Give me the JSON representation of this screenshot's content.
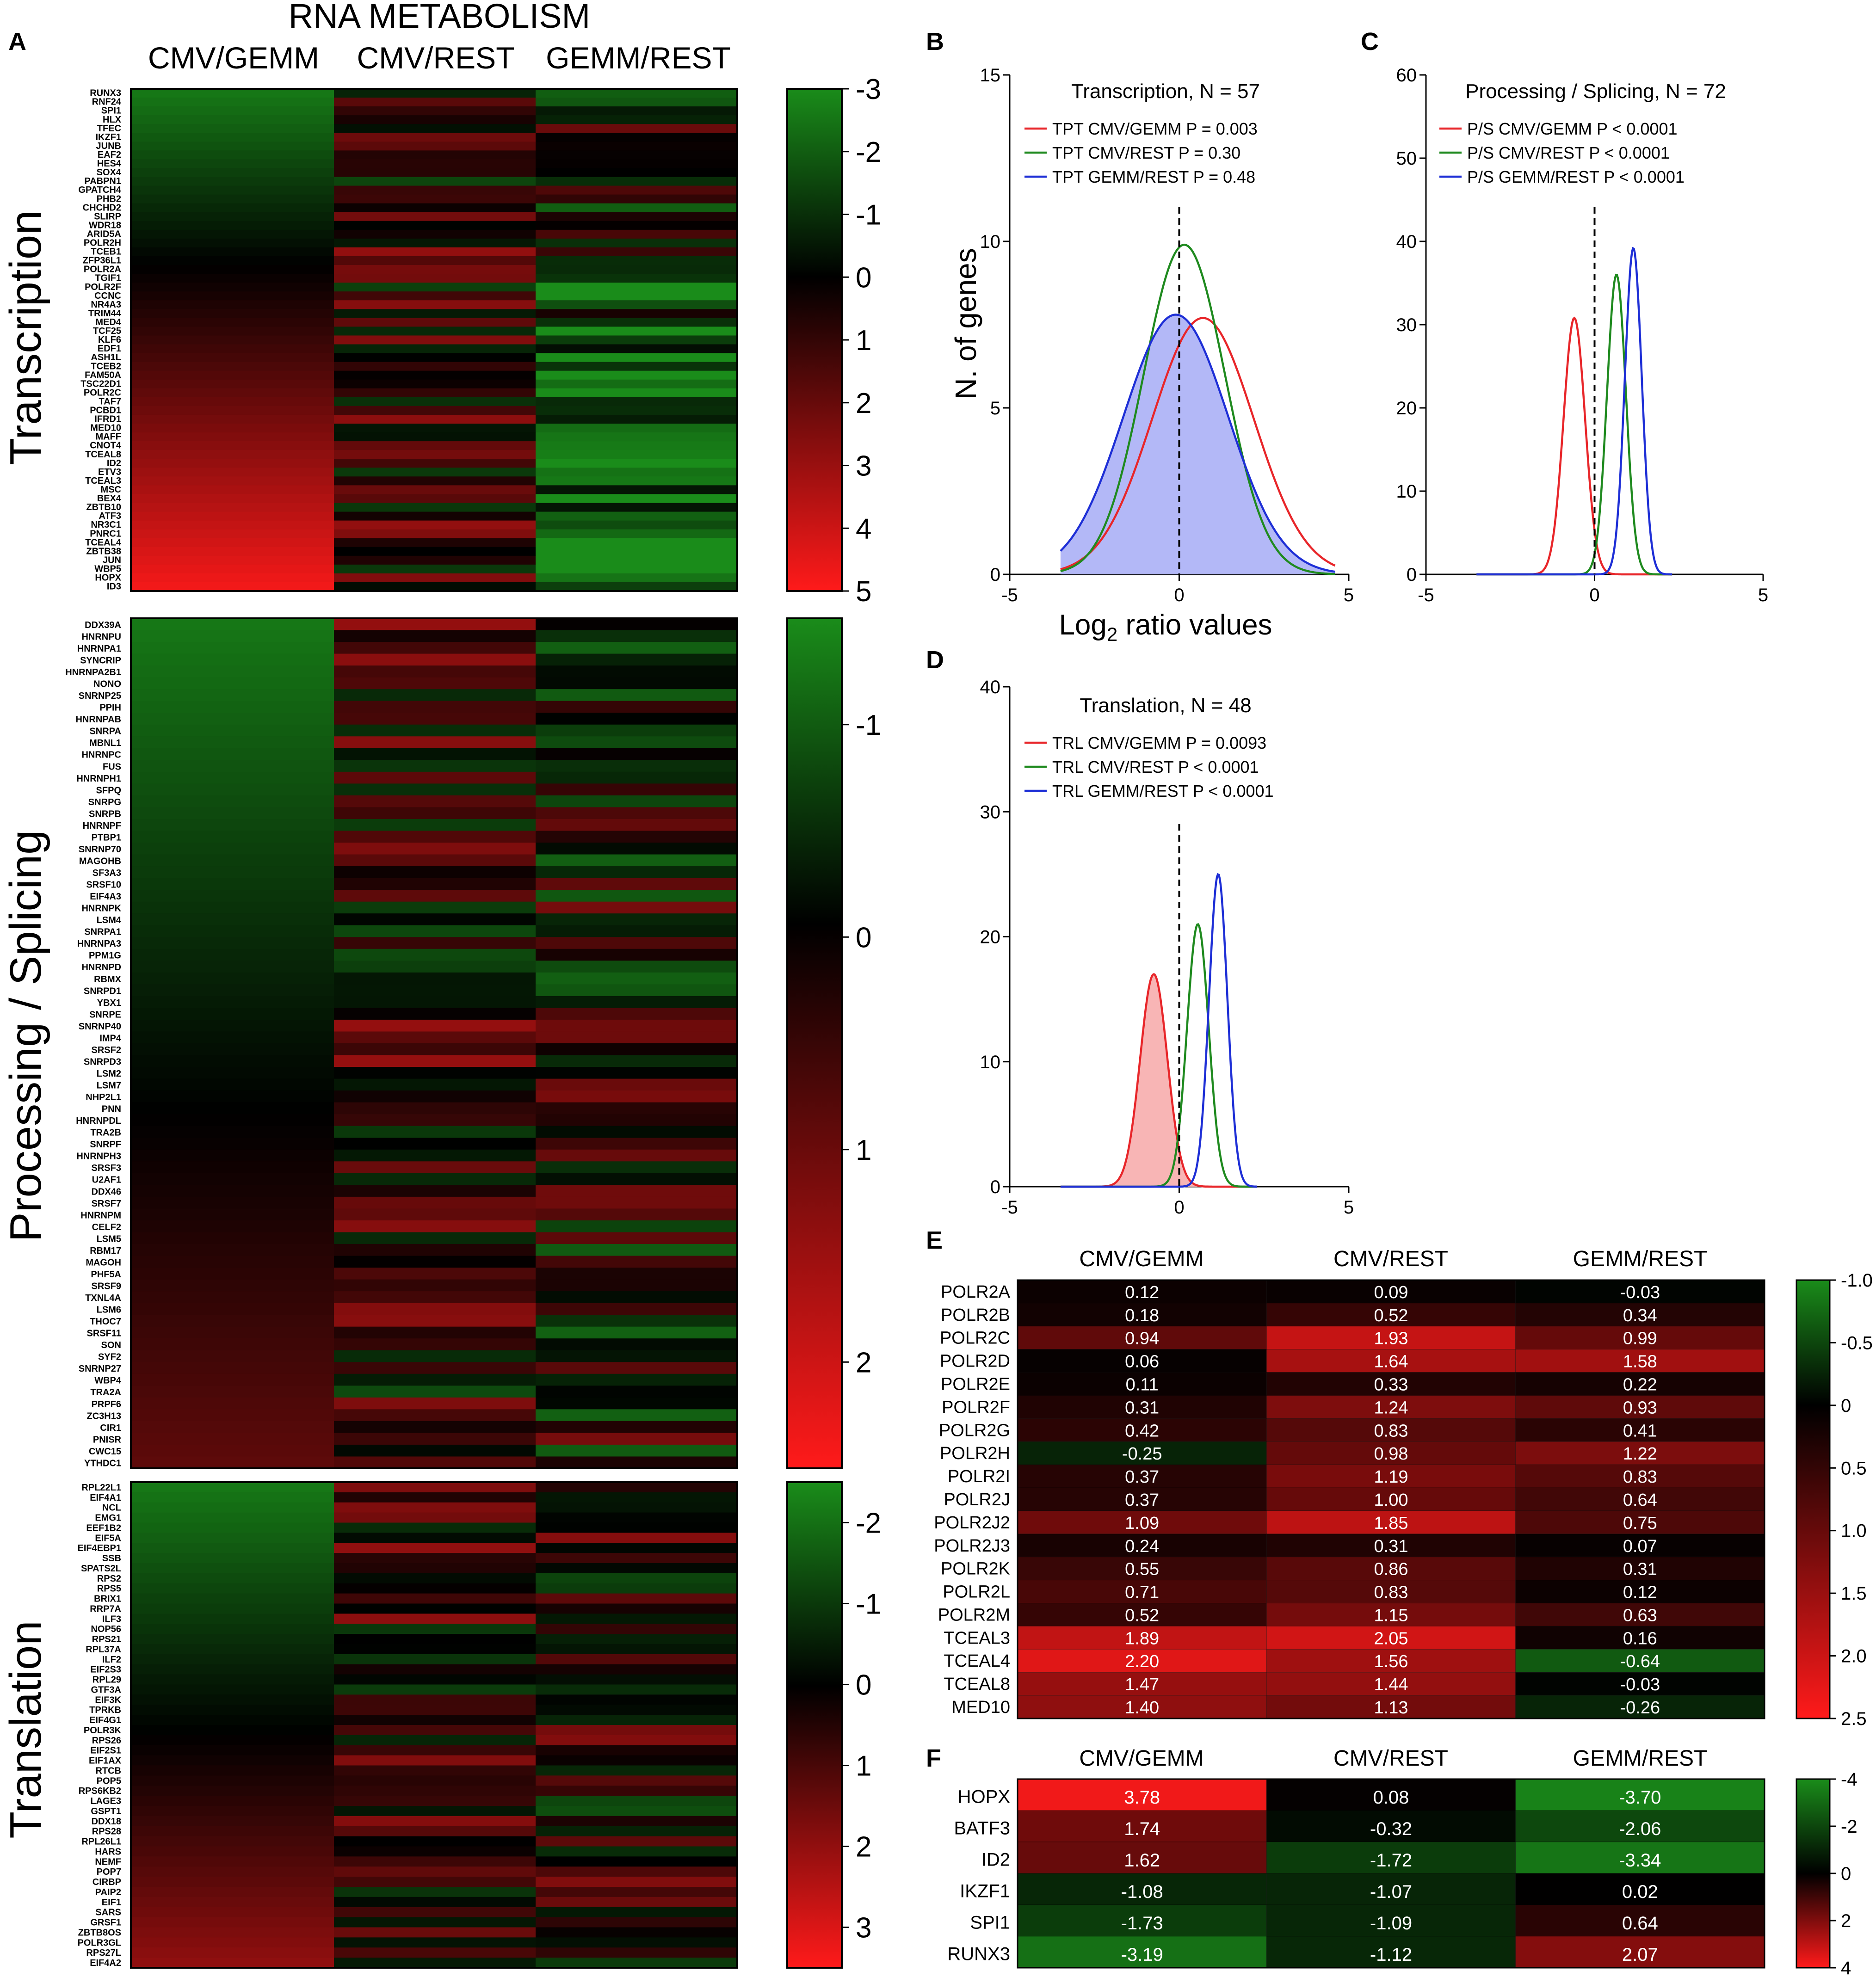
{
  "panel_letters": {
    "A": "A",
    "B": "B",
    "C": "C",
    "D": "D",
    "E": "E",
    "F": "F"
  },
  "colors": {
    "green": "#1a8c1a",
    "black": "#000000",
    "red": "#ff1a1a",
    "gauss_red": "#e8262a",
    "gauss_green": "#1f8a1f",
    "gauss_blue": "#1e2fd6",
    "fill_blue": "#b3b8f7",
    "fill_red": "#f8b5b5"
  },
  "chart_data": [
    {
      "id": "A",
      "type": "heatmap",
      "title": "RNA METABOLISM",
      "columns": [
        "CMV/GEMM",
        "CMV/REST",
        "GEMM/REST"
      ],
      "sections": [
        {
          "label": "Transcription",
          "scale": {
            "ticks": [
              "-3",
              "-2",
              "-1",
              "0",
              "1",
              "2",
              "3",
              "4",
              "5"
            ],
            "min": -3,
            "max": 5
          },
          "genes": [
            "RUNX3",
            "RNF24",
            "SPI1",
            "HLX",
            "TFEC",
            "IKZF1",
            "JUNB",
            "EAF2",
            "HES4",
            "SOX4",
            "PABPN1",
            "GPATCH4",
            "PHB2",
            "CHCHD2",
            "SLIRP",
            "WDR18",
            "ARID5A",
            "POLR2H",
            "TCEB1",
            "ZFP36L1",
            "POLR2A",
            "TGIF1",
            "POLR2F",
            "CCNC",
            "NR4A3",
            "TRIM44",
            "MED4",
            "TCF25",
            "KLF6",
            "EDF1",
            "ASH1L",
            "TCEB2",
            "FAM50A",
            "TSC22D1",
            "POLR2C",
            "TAF7",
            "PCBD1",
            "IFRD1",
            "MED10",
            "MAFF",
            "CNOT4",
            "TCEAL8",
            "ID2",
            "ETV3",
            "TCEAL3",
            "MSC",
            "BEX4",
            "ZBTB10",
            "ATF3",
            "NR3C1",
            "PNRC1",
            "TCEAL4",
            "ZBTB38",
            "JUN",
            "WBP5",
            "HOPX",
            "ID3"
          ]
        },
        {
          "label": "Processing / Splicing",
          "scale": {
            "ticks": [
              "-1",
              "0",
              "1",
              "2"
            ],
            "min": -1.5,
            "max": 2.5
          },
          "genes": [
            "DDX39A",
            "HNRNPU",
            "HNRNPA1",
            "SYNCRIP",
            "HNRNPA2B1",
            "NONO",
            "SNRNP25",
            "PPIH",
            "HNRNPAB",
            "SNRPA",
            "MBNL1",
            "HNRNPC",
            "FUS",
            "HNRNPH1",
            "SFPQ",
            "SNRPG",
            "SNRPB",
            "HNRNPF",
            "PTBP1",
            "SNRNP70",
            "MAGOHB",
            "SF3A3",
            "SRSF10",
            "EIF4A3",
            "HNRNPK",
            "LSM4",
            "SNRPA1",
            "HNRNPA3",
            "PPM1G",
            "HNRNPD",
            "RBMX",
            "SNRPD1",
            "YBX1",
            "SNRPE",
            "SNRNP40",
            "IMP4",
            "SRSF2",
            "SNRPD3",
            "LSM2",
            "LSM7",
            "NHP2L1",
            "PNN",
            "HNRNPDL",
            "TRA2B",
            "SNRPF",
            "HNRNPH3",
            "SRSF3",
            "U2AF1",
            "DDX46",
            "SRSF7",
            "HNRNPM",
            "CELF2",
            "LSM5",
            "RBM17",
            "MAGOH",
            "PHF5A",
            "SRSF9",
            "TXNL4A",
            "LSM6",
            "THOC7",
            "SRSF11",
            "SON",
            "SYF2",
            "SNRNP27",
            "WBP4",
            "TRA2A",
            "PRPF6",
            "ZC3H13",
            "CIR1",
            "PNISR",
            "CWC15",
            "YTHDC1"
          ]
        },
        {
          "label": "Translation",
          "scale": {
            "ticks": [
              "-2",
              "-1",
              "0",
              "1",
              "2",
              "3"
            ],
            "min": -2.5,
            "max": 3.5
          },
          "genes": [
            "RPL22L1",
            "EIF4A1",
            "NCL",
            "EMG1",
            "EEF1B2",
            "EIF5A",
            "EIF4EBP1",
            "SSB",
            "SPATS2L",
            "RPS2",
            "RPS5",
            "BRIX1",
            "RRP7A",
            "ILF3",
            "NOP56",
            "RPS21",
            "RPL37A",
            "ILF2",
            "EIF2S3",
            "RPL29",
            "GTF3A",
            "EIF3K",
            "TPRKB",
            "EIF4G1",
            "POLR3K",
            "RPS26",
            "EIF2S1",
            "EIF1AX",
            "RTCB",
            "POP5",
            "RPS6KB2",
            "LAGE3",
            "GSPT1",
            "DDX18",
            "RPS28",
            "RPL26L1",
            "HARS",
            "NEMF",
            "POP7",
            "CIRBP",
            "PAIP2",
            "EIF1",
            "SARS",
            "GRSF1",
            "ZBTB8OS",
            "POLR3GL",
            "RPS27L",
            "EIF4A2"
          ]
        }
      ]
    },
    {
      "id": "B",
      "type": "line",
      "title": "Transcription, N = 57",
      "xlabel": "Log2 ratio values",
      "xlabel_main": "Log",
      "xlabel_sub": "2",
      "xlabel_rest": " ratio values",
      "ylabel": "N. of genes",
      "xlim": [
        -5,
        5
      ],
      "ylim": [
        0,
        15
      ],
      "xticks": [
        "-5",
        "0",
        "5"
      ],
      "yticks": [
        "0",
        "5",
        "10",
        "15"
      ],
      "series": [
        {
          "name": "TPT CMV/GEMM P = 0.003",
          "color": "red",
          "mean": 0.7,
          "sd": 1.5,
          "peak": 7.7,
          "xmin": -3.5,
          "xmax": 4.6,
          "fill": false
        },
        {
          "name": "TPT CMV/REST P = 0.30",
          "color": "green",
          "mean": 0.15,
          "sd": 1.2,
          "peak": 9.9,
          "xmin": -3.5,
          "xmax": 4.6,
          "fill": false
        },
        {
          "name": "TPT GEMM/REST P = 0.48",
          "color": "blue",
          "mean": -0.1,
          "sd": 1.55,
          "peak": 7.8,
          "xmin": -3.5,
          "xmax": 4.6,
          "fill": true
        }
      ]
    },
    {
      "id": "C",
      "type": "line",
      "title": "Processing / Splicing, N = 72",
      "xlim": [
        -5,
        5
      ],
      "ylim": [
        0,
        60
      ],
      "xticks": [
        "-5",
        "0",
        "5"
      ],
      "yticks": [
        "0",
        "10",
        "20",
        "30",
        "40",
        "50",
        "60"
      ],
      "series": [
        {
          "name": "P/S CMV/GEMM P < 0.0001",
          "color": "red",
          "mean": -0.6,
          "sd": 0.32,
          "peak": 30.8,
          "xmin": -3.5,
          "xmax": 2.3,
          "fill": false
        },
        {
          "name": "P/S CMV/REST P < 0.0001",
          "color": "green",
          "mean": 0.65,
          "sd": 0.28,
          "peak": 36,
          "xmin": -3.5,
          "xmax": 2.3,
          "fill": false
        },
        {
          "name": "P/S GEMM/REST P < 0.0001",
          "color": "blue",
          "mean": 1.15,
          "sd": 0.25,
          "peak": 39.2,
          "xmin": -3.5,
          "xmax": 2.3,
          "fill": false
        }
      ]
    },
    {
      "id": "D",
      "type": "line",
      "title": "Translation, N = 48",
      "xlim": [
        -5,
        5
      ],
      "ylim": [
        0,
        40
      ],
      "xticks": [
        "-5",
        "0",
        "5"
      ],
      "yticks": [
        "0",
        "10",
        "20",
        "30",
        "40"
      ],
      "series": [
        {
          "name": "TRL CMV/GEMM P = 0.0093",
          "color": "red",
          "mean": -0.75,
          "sd": 0.4,
          "peak": 17,
          "xmin": -3.5,
          "xmax": 2.3,
          "fill": true
        },
        {
          "name": "TRL CMV/REST P < 0.0001",
          "color": "green",
          "mean": 0.55,
          "sd": 0.32,
          "peak": 21,
          "xmin": -3.5,
          "xmax": 2.3,
          "fill": false
        },
        {
          "name": "TRL GEMM/REST P < 0.0001",
          "color": "blue",
          "mean": 1.15,
          "sd": 0.27,
          "peak": 25,
          "xmin": -3.5,
          "xmax": 2.3,
          "fill": false
        }
      ]
    },
    {
      "id": "E",
      "type": "heatmap",
      "columns": [
        "CMV/GEMM",
        "CMV/REST",
        "GEMM/REST"
      ],
      "scale": {
        "ticks": [
          "-1.0",
          "-0.5",
          "0",
          "0.5",
          "1.0",
          "1.5",
          "2.0",
          "2.5"
        ],
        "min": -1.0,
        "max": 2.5
      },
      "rows": [
        "POLR2A",
        "POLR2B",
        "POLR2C",
        "POLR2D",
        "POLR2E",
        "POLR2F",
        "POLR2G",
        "POLR2H",
        "POLR2I",
        "POLR2J",
        "POLR2J2",
        "POLR2J3",
        "POLR2K",
        "POLR2L",
        "POLR2M",
        "TCEAL3",
        "TCEAL4",
        "TCEAL8",
        "MED10"
      ],
      "values": [
        [
          "0.12",
          "0.09",
          "-0.03"
        ],
        [
          "0.18",
          "0.52",
          "0.34"
        ],
        [
          "0.94",
          "1.93",
          "0.99"
        ],
        [
          "0.06",
          "1.64",
          "1.58"
        ],
        [
          "0.11",
          "0.33",
          "0.22"
        ],
        [
          "0.31",
          "1.24",
          "0.93"
        ],
        [
          "0.42",
          "0.83",
          "0.41"
        ],
        [
          "-0.25",
          "0.98",
          "1.22"
        ],
        [
          "0.37",
          "1.19",
          "0.83"
        ],
        [
          "0.37",
          "1.00",
          "0.64"
        ],
        [
          "1.09",
          "1.85",
          "0.75"
        ],
        [
          "0.24",
          "0.31",
          "0.07"
        ],
        [
          "0.55",
          "0.86",
          "0.31"
        ],
        [
          "0.71",
          "0.83",
          "0.12"
        ],
        [
          "0.52",
          "1.15",
          "0.63"
        ],
        [
          "1.89",
          "2.05",
          "0.16"
        ],
        [
          "2.20",
          "1.56",
          "-0.64"
        ],
        [
          "1.47",
          "1.44",
          "-0.03"
        ],
        [
          "1.40",
          "1.13",
          "-0.26"
        ]
      ]
    },
    {
      "id": "F",
      "type": "heatmap",
      "columns": [
        "CMV/GEMM",
        "CMV/REST",
        "GEMM/REST"
      ],
      "scale": {
        "ticks": [
          "-4",
          "-2",
          "0",
          "2",
          "4"
        ],
        "min": -4,
        "max": 4
      },
      "rows": [
        "HOPX",
        "BATF3",
        "ID2",
        "IKZF1",
        "SPI1",
        "RUNX3"
      ],
      "values": [
        [
          "3.78",
          "0.08",
          "-3.70"
        ],
        [
          "1.74",
          "-0.32",
          "-2.06"
        ],
        [
          "1.62",
          "-1.72",
          "-3.34"
        ],
        [
          "-1.08",
          "-1.07",
          "0.02"
        ],
        [
          "-1.73",
          "-1.09",
          "0.64"
        ],
        [
          "-3.19",
          "-1.12",
          "2.07"
        ]
      ]
    }
  ]
}
